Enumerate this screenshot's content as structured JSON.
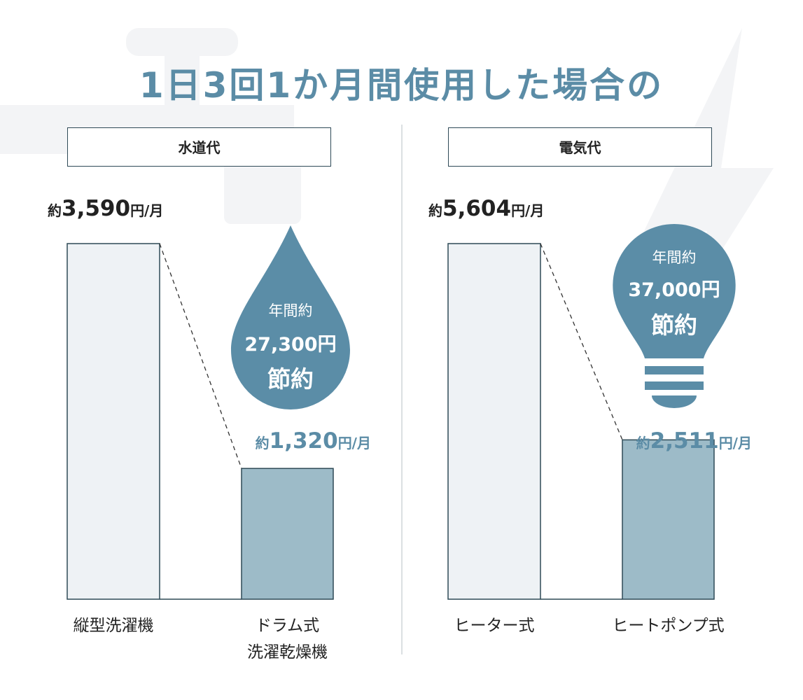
{
  "title": "1日3回1か月間使用した場合の",
  "chart_data": [
    {
      "type": "bar",
      "title": "水道代",
      "categories": [
        "縦型洗濯機",
        "ドラム式\n洗濯乾燥機"
      ],
      "values": [
        3590,
        1320
      ],
      "value_labels": [
        "約3,590円/月",
        "約1,320円/月"
      ],
      "colors": [
        "#eef2f5",
        "#9dbbc8"
      ],
      "ylim": [
        0,
        3590
      ],
      "annotation": [
        "年間約",
        "27,300円",
        "節約"
      ]
    },
    {
      "type": "bar",
      "title": "電気代",
      "categories": [
        "ヒーター式",
        "ヒートポンプ式"
      ],
      "values": [
        5604,
        2511
      ],
      "value_labels": [
        "約5,604円/月",
        "約2,511円/月"
      ],
      "colors": [
        "#eef2f5",
        "#9dbbc8"
      ],
      "ylim": [
        0,
        5604
      ],
      "annotation": [
        "年間約",
        "37,000円",
        "節約"
      ]
    }
  ]
}
